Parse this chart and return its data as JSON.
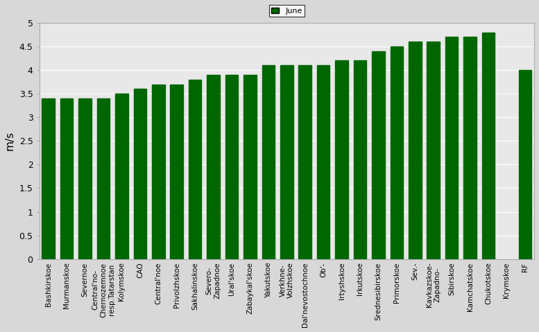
{
  "categories": [
    "Bashkirskoe",
    "Murmanskoe",
    "Severnoe",
    "Central'no-\nChernozemnoe\nresp.Tatarstan",
    "Kolymskoe",
    "CAO",
    "Central'noe",
    "Privolzhskoe",
    "Sakhalinskoe",
    "Severo-\nZapadnoe",
    "Ural'skoe",
    "Zabaykal'skoe",
    "Yakutskoe",
    "Verkhne-\nVolzhskoe",
    "Dal'nevostochnoe",
    "Ob'-",
    "Irtyshskoe",
    "Irkutskoe",
    "Srednesibirskoe",
    "Primorskoe",
    "Sev.-",
    "Kavkazskoe-\nZapadno-",
    "Sibirskoe",
    "Kamchatskoe",
    "Chukotskoe",
    "Krymskoe",
    "RF"
  ],
  "values": [
    3.4,
    3.4,
    3.4,
    3.4,
    3.5,
    3.6,
    3.7,
    3.7,
    3.8,
    3.9,
    3.9,
    3.9,
    4.1,
    4.1,
    4.1,
    4.1,
    4.2,
    4.2,
    4.4,
    4.5,
    4.6,
    4.6,
    4.7,
    4.7,
    4.8,
    0.0,
    4.0
  ],
  "bar_color": "#006600",
  "ylabel": "m/s",
  "ylim": [
    0,
    5
  ],
  "yticks": [
    0,
    0.5,
    1.0,
    1.5,
    2.0,
    2.5,
    3.0,
    3.5,
    4.0,
    4.5,
    5.0
  ],
  "ytick_labels": [
    "0",
    "0.5",
    "1",
    "1.5",
    "2",
    "2.5",
    "3",
    "3.5",
    "4",
    "4.5",
    "5"
  ],
  "legend_label": "June",
  "legend_color": "#006600",
  "outer_bg_color": "#d8d8d8",
  "plot_bg_color": "#e8e8e8",
  "figsize": [
    7.77,
    4.79
  ],
  "dpi": 100
}
